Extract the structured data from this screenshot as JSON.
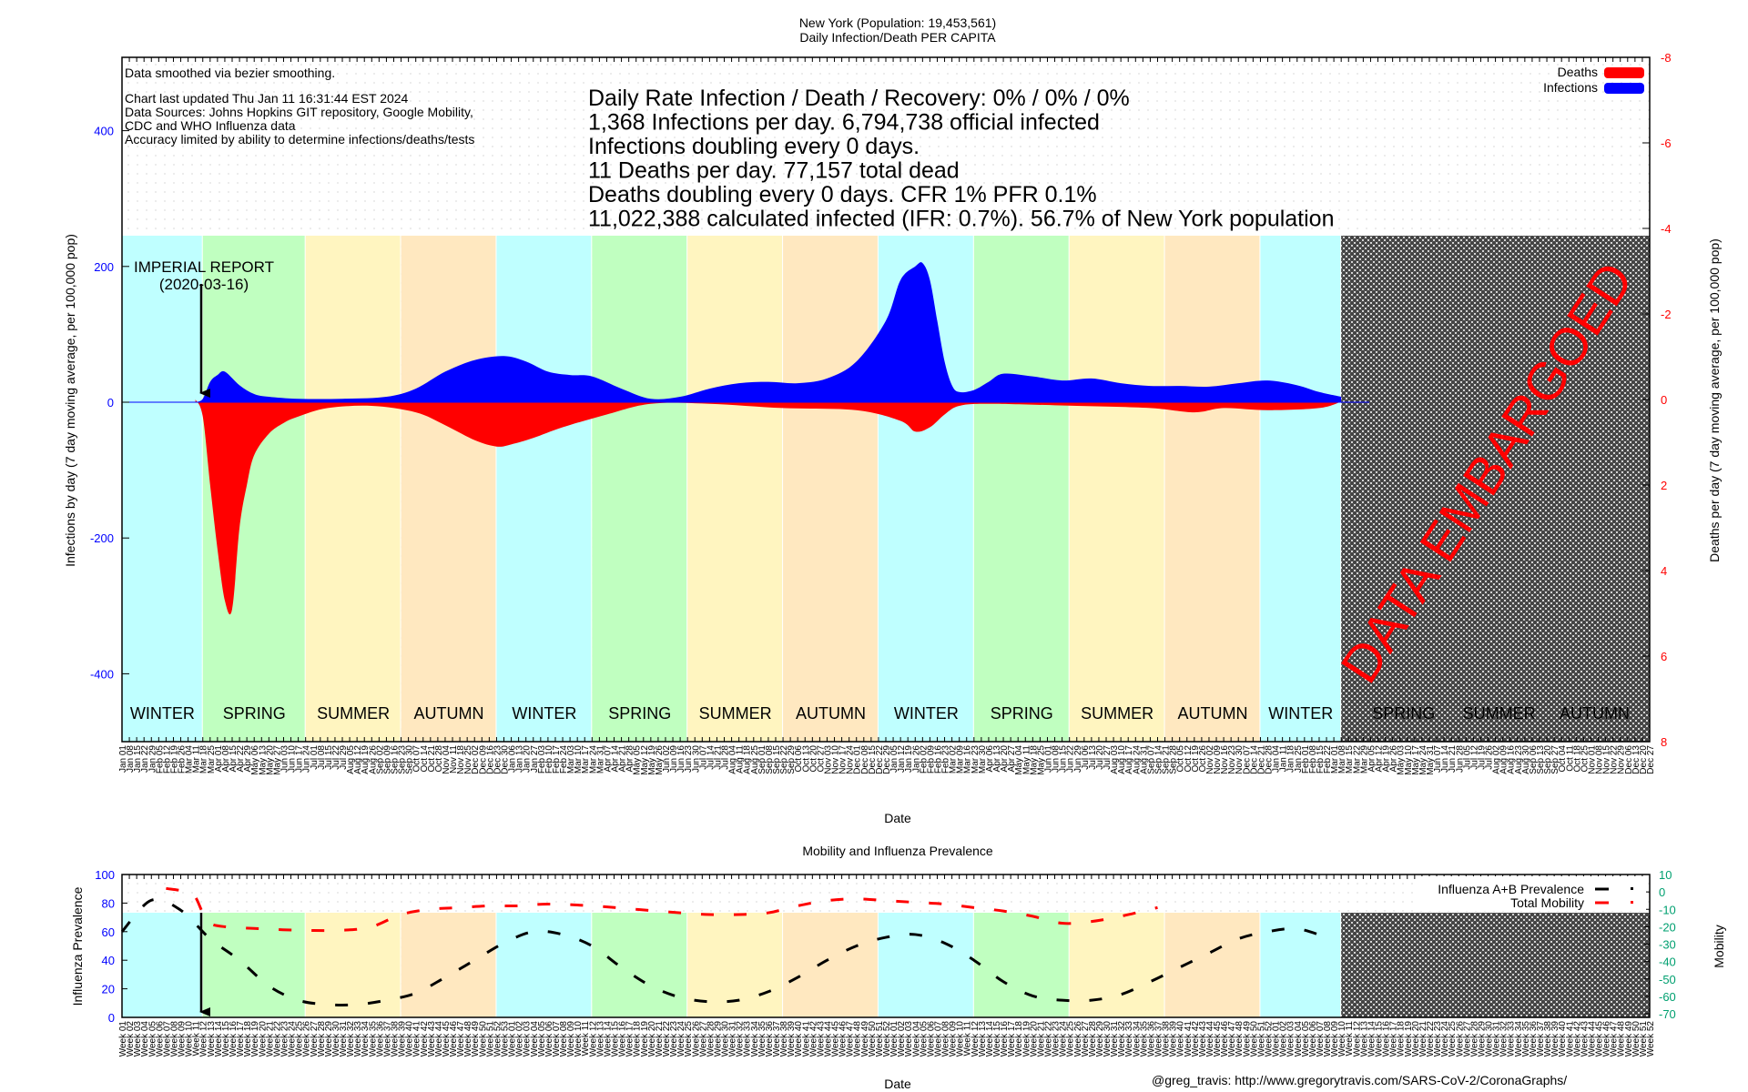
{
  "header": {
    "title_line1": "New York (Population: 19,453,561)",
    "title_line2": "Daily Infection/Death PER CAPITA"
  },
  "notes": {
    "smoothing": "Data smoothed via bezier smoothing.",
    "updated": "Chart last updated Thu Jan 11 16:31:44 EST 2024",
    "sources1": "Data Sources: Johns Hopkins GIT repository, Google Mobility,",
    "sources2": "CDC and WHO Influenza data",
    "accuracy": "Accuracy limited by ability to determine infections/deaths/tests"
  },
  "stats": [
    "Daily Rate Infection / Death / Recovery: 0% / 0% / 0%",
    "1,368 Infections per day.  6,794,738 official infected",
    "Infections doubling every 0 days.",
    "11 Deaths per day.  77,157 total dead",
    "Deaths doubling every 0 days.  CFR 1%  PFR 0.1%",
    "11,022,388 calculated infected (IFR: 0.7%).  56.7% of New York population"
  ],
  "annotation": {
    "label1": "IMPERIAL REPORT",
    "label2": "(2020-03-16)"
  },
  "embargo_label": "DATA EMBARGOED",
  "footer": {
    "credit": "@greg_travis: http://www.gregorytravis.com/SARS-CoV-2/CoronaGraphs/"
  },
  "colors": {
    "infections": "#0000ff",
    "deaths": "#ff0000",
    "winter": "#bfffff",
    "spring": "#c0ffc0",
    "summer": "#fff5c0",
    "autumn": "#ffe8c0",
    "left_axis": "#0000ff",
    "right_axis_main": "#ff0000",
    "right_axis_lower": "#00a070"
  },
  "chart_data": [
    {
      "type": "area",
      "title": "New York (Population: 19,453,561) Daily Infection/Death PER CAPITA",
      "xlabel": "Date",
      "ylabel": "Infections by day (7 day moving average, per 100,000 pop)",
      "y2label": "Deaths per day (7 day moving average, per 100,000 pop)",
      "ylim": [
        -500,
        500
      ],
      "y2lim": [
        8,
        -8
      ],
      "yticks": [
        400,
        200,
        0,
        -200,
        -400
      ],
      "y2ticks": [
        -8,
        -6,
        -4,
        -2,
        0,
        2,
        4,
        6,
        8
      ],
      "legend": [
        "Deaths",
        "Infections"
      ],
      "legend_position": "top-right",
      "x_range_weeks": [
        0,
        208
      ],
      "embargo_start_week": 166,
      "seasons": [
        {
          "label": "WINTER",
          "start": 0,
          "end": 11
        },
        {
          "label": "SPRING",
          "start": 11,
          "end": 25
        },
        {
          "label": "SUMMER",
          "start": 25,
          "end": 38
        },
        {
          "label": "AUTUMN",
          "start": 38,
          "end": 51
        },
        {
          "label": "WINTER",
          "start": 51,
          "end": 64
        },
        {
          "label": "SPRING",
          "start": 64,
          "end": 77
        },
        {
          "label": "SUMMER",
          "start": 77,
          "end": 90
        },
        {
          "label": "AUTUMN",
          "start": 90,
          "end": 103
        },
        {
          "label": "WINTER",
          "start": 103,
          "end": 116
        },
        {
          "label": "SPRING",
          "start": 116,
          "end": 129
        },
        {
          "label": "SUMMER",
          "start": 129,
          "end": 142
        },
        {
          "label": "AUTUMN",
          "start": 142,
          "end": 155
        },
        {
          "label": "WINTER",
          "start": 155,
          "end": 166
        },
        {
          "label": "SPRING",
          "start": 168,
          "end": 181
        },
        {
          "label": "SUMMER",
          "start": 181,
          "end": 194
        },
        {
          "label": "AUTUMN",
          "start": 194,
          "end": 207
        }
      ],
      "x_tick_labels_first": [
        "Jan 01",
        "Jan 08",
        "Jan 15",
        "Jan 22",
        "Jan 29",
        "Feb 05",
        "Feb 12",
        "Feb 19",
        "Feb 26",
        "Mar 04",
        "Mar 11",
        "Mar 18",
        "Mar 25",
        "Apr 01",
        "Apr 08",
        "Apr 15",
        "Apr 22",
        "Apr 29",
        "May 06",
        "May 13",
        "May 20",
        "May 27",
        "Jun 03",
        "Jun 10",
        "Jun 17",
        "Jun 24"
      ],
      "series": [
        {
          "name": "Infections",
          "weeks": [
            10,
            11,
            12,
            13,
            14,
            16,
            18,
            20,
            24,
            30,
            36,
            40,
            44,
            48,
            52,
            55,
            58,
            61,
            64,
            68,
            72,
            76,
            80,
            84,
            88,
            92,
            96,
            100,
            104,
            106,
            108,
            109,
            110,
            111,
            112,
            113,
            114,
            116,
            118,
            120,
            124,
            128,
            132,
            136,
            140,
            144,
            148,
            152,
            156,
            160,
            163,
            166
          ],
          "values": [
            0,
            5,
            30,
            40,
            45,
            25,
            12,
            8,
            5,
            5,
            8,
            20,
            45,
            62,
            68,
            60,
            45,
            40,
            38,
            20,
            5,
            8,
            20,
            28,
            30,
            28,
            35,
            60,
            120,
            180,
            200,
            205,
            180,
            120,
            60,
            25,
            15,
            18,
            30,
            42,
            38,
            32,
            35,
            28,
            24,
            24,
            23,
            28,
            32,
            25,
            15,
            8
          ]
        },
        {
          "name": "Deaths",
          "weeks": [
            10,
            11,
            12,
            13,
            14,
            15,
            16,
            17,
            18,
            20,
            22,
            24,
            28,
            34,
            40,
            44,
            48,
            51,
            53,
            56,
            60,
            66,
            72,
            80,
            90,
            100,
            106,
            108,
            110,
            112,
            114,
            118,
            130,
            140,
            146,
            150,
            156,
            163,
            166
          ],
          "values": [
            0,
            0.4,
            2.0,
            3.5,
            4.7,
            4.9,
            3.0,
            2.0,
            1.3,
            0.8,
            0.55,
            0.4,
            0.2,
            0.15,
            0.3,
            0.6,
            0.95,
            1.1,
            1.05,
            0.9,
            0.65,
            0.35,
            0.1,
            0.1,
            0.2,
            0.25,
            0.5,
            0.75,
            0.65,
            0.35,
            0.15,
            0.1,
            0.15,
            0.2,
            0.3,
            0.2,
            0.25,
            0.2,
            0.05
          ]
        }
      ]
    },
    {
      "type": "line",
      "title": "Mobility and Influenza Prevalence",
      "xlabel": "Date",
      "ylabel": "Influenza Prevalence",
      "y2label": "Mobility",
      "ylim": [
        0,
        100
      ],
      "y2lim": [
        -70,
        10
      ],
      "yticks": [
        0,
        20,
        40,
        60,
        80,
        100
      ],
      "y2ticks": [
        10,
        0,
        -10,
        -20,
        -30,
        -40,
        -50,
        -60,
        -70
      ],
      "legend": [
        "Influenza A+B Prevalence",
        "Total Mobility"
      ],
      "legend_position": "top-right",
      "x_tick_format": "Week NN",
      "x_tick_labels_first": [
        "Week 01",
        "Week 02",
        "Week 03",
        "Week 04",
        "Week 05",
        "Week 06",
        "Week 07",
        "Week 08",
        "Week 09",
        "Week 10",
        "Week 11",
        "Week 12",
        "Week 13"
      ],
      "series": [
        {
          "name": "Influenza A+B Prevalence",
          "weeks": [
            0,
            4,
            8,
            12,
            16,
            20,
            24,
            28,
            32,
            36,
            40,
            44,
            48,
            52,
            56,
            60,
            64,
            68,
            72,
            76,
            80,
            84,
            88,
            92,
            96,
            100,
            104,
            108,
            112,
            116,
            120,
            124,
            128,
            132,
            136,
            140,
            144,
            148,
            152,
            156,
            160,
            164
          ],
          "values": [
            60,
            82,
            75,
            55,
            40,
            22,
            12,
            9,
            9,
            12,
            17,
            28,
            40,
            52,
            60,
            58,
            50,
            35,
            22,
            14,
            11,
            12,
            18,
            28,
            40,
            50,
            56,
            58,
            52,
            40,
            25,
            15,
            12,
            12,
            16,
            25,
            35,
            45,
            55,
            60,
            62,
            56
          ]
        },
        {
          "name": "Total Mobility",
          "weeks": [
            6,
            9,
            10,
            11,
            12,
            14,
            18,
            24,
            30,
            34,
            38,
            42,
            46,
            50,
            54,
            58,
            64,
            70,
            76,
            80,
            84,
            88,
            92,
            96,
            100,
            104,
            108,
            112,
            116,
            120,
            124,
            128,
            132,
            136,
            140,
            141
          ],
          "values": [
            2,
            0,
            -3,
            -12,
            -18,
            -20,
            -21,
            -22,
            -22,
            -20,
            -13,
            -10,
            -9,
            -8,
            -8,
            -7,
            -8,
            -10,
            -12,
            -13,
            -13,
            -12,
            -8,
            -5,
            -4,
            -5,
            -6,
            -7,
            -9,
            -11,
            -14,
            -18,
            -17,
            -14,
            -10,
            -9
          ]
        }
      ]
    }
  ]
}
